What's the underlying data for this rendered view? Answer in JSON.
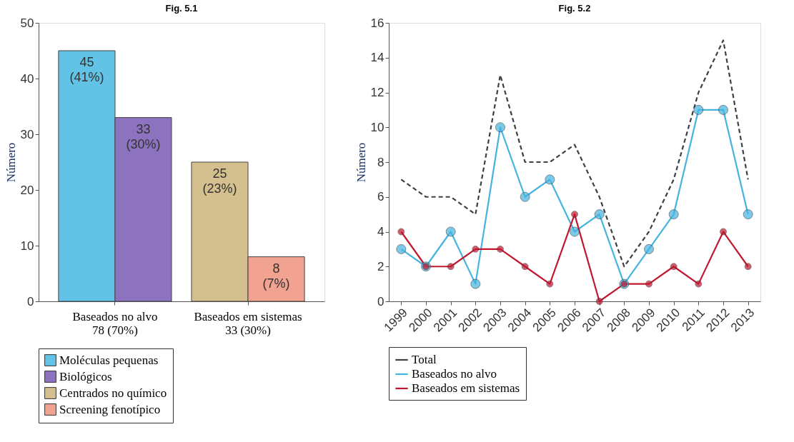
{
  "chart_data": [
    {
      "type": "bar",
      "title": "Fig. 5.1",
      "ylabel": "Número",
      "categories": [
        "Baseados no alvo\n78 (70%)",
        "Baseados em sistemas\n33 (30%)"
      ],
      "series": [
        {
          "name": "Moléculas pequenas",
          "color": "#62c3e6",
          "values": [
            45,
            null
          ],
          "value_labels": [
            "45\n(41%)",
            null
          ]
        },
        {
          "name": "Biológicos",
          "color": "#8d72c0",
          "values": [
            33,
            null
          ],
          "value_labels": [
            "33\n(30%)",
            null
          ]
        },
        {
          "name": "Centrados no químico",
          "color": "#d4bf8e",
          "values": [
            null,
            25
          ],
          "value_labels": [
            null,
            "25\n(23%)"
          ]
        },
        {
          "name": "Screening fenotípico",
          "color": "#f2a290",
          "values": [
            null,
            8
          ],
          "value_labels": [
            null,
            "8\n(7%)"
          ]
        }
      ],
      "ylim": [
        0,
        50
      ],
      "yticks": [
        0,
        10,
        20,
        30,
        40,
        50
      ],
      "grid": false,
      "legend": "bottom"
    },
    {
      "type": "line",
      "title": "Fig. 5.2",
      "ylabel": "Número",
      "categories": [
        "1999",
        "2000",
        "2001",
        "2002",
        "2003",
        "2004",
        "2005",
        "2006",
        "2007",
        "2008",
        "2009",
        "2010",
        "2011",
        "2012",
        "2013"
      ],
      "series": [
        {
          "name": "Total",
          "color": "#3a3f48",
          "line_style": "dashed",
          "marker": "none",
          "values": [
            7,
            6,
            6,
            5,
            13,
            8,
            8,
            9,
            6,
            2,
            4,
            7,
            12,
            15,
            7
          ]
        },
        {
          "name": "Baseados no alvo",
          "color": "#45b4e0",
          "values": [
            3,
            2,
            4,
            1,
            10,
            6,
            7,
            4,
            5,
            1,
            3,
            5,
            11,
            11,
            5
          ]
        },
        {
          "name": "Baseados em sistemas",
          "color": "#c0182e",
          "values": [
            4,
            2,
            2,
            3,
            3,
            2,
            1,
            5,
            0,
            1,
            1,
            2,
            1,
            4,
            2
          ]
        }
      ],
      "ylim": [
        0,
        16
      ],
      "yticks": [
        0,
        2,
        4,
        6,
        8,
        10,
        12,
        14,
        16
      ],
      "grid": false,
      "legend": "bottom",
      "marker": "circle",
      "line_style": "solid"
    }
  ]
}
